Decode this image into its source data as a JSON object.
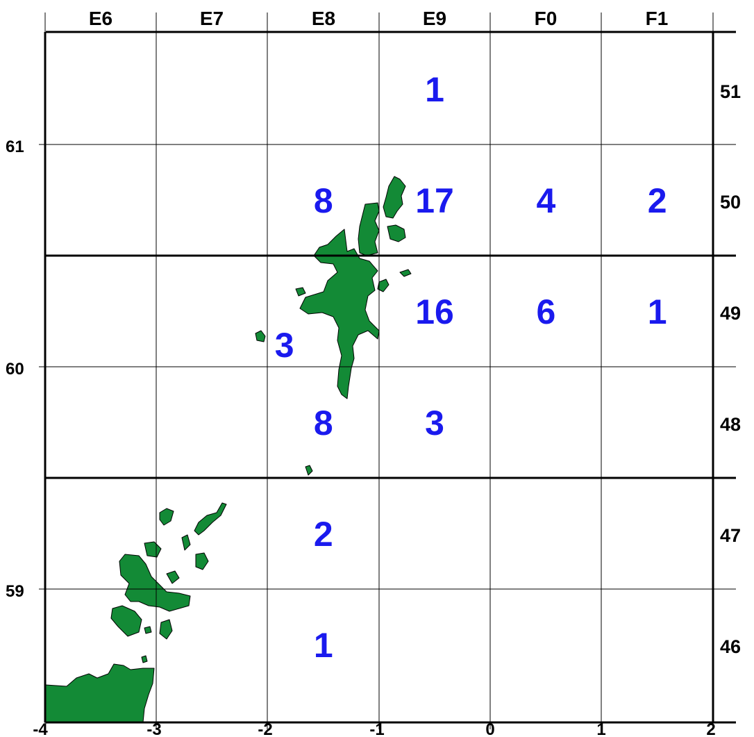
{
  "colors": {
    "count_text": "#1a1aee",
    "land": "#138a36",
    "land_outline": "#000000",
    "grid": "#000000",
    "background": "#ffffff"
  },
  "top_labels": [
    "E6",
    "E7",
    "E8",
    "E9",
    "F0",
    "F1"
  ],
  "right_labels": [
    "51",
    "50",
    "49",
    "48",
    "47",
    "46"
  ],
  "bottom_ticks": [
    "-4",
    "-3",
    "-2",
    "-1",
    "0",
    "1",
    "2"
  ],
  "left_ticks": [
    "61",
    "60",
    "59"
  ],
  "counts": [
    {
      "value": "1",
      "lon": -0.5,
      "lat": 61.25
    },
    {
      "value": "8",
      "lon": -1.5,
      "lat": 60.75
    },
    {
      "value": "17",
      "lon": -0.5,
      "lat": 60.75
    },
    {
      "value": "4",
      "lon": 0.5,
      "lat": 60.75
    },
    {
      "value": "2",
      "lon": 1.5,
      "lat": 60.75
    },
    {
      "value": "16",
      "lon": -0.5,
      "lat": 60.25
    },
    {
      "value": "6",
      "lon": 0.5,
      "lat": 60.25
    },
    {
      "value": "1",
      "lon": 1.5,
      "lat": 60.25
    },
    {
      "value": "3",
      "lon": -1.85,
      "lat": 60.1
    },
    {
      "value": "8",
      "lon": -1.5,
      "lat": 59.75
    },
    {
      "value": "3",
      "lon": -0.5,
      "lat": 59.75
    },
    {
      "value": "2",
      "lon": -1.5,
      "lat": 59.25
    },
    {
      "value": "1",
      "lon": -1.5,
      "lat": 58.75
    }
  ]
}
